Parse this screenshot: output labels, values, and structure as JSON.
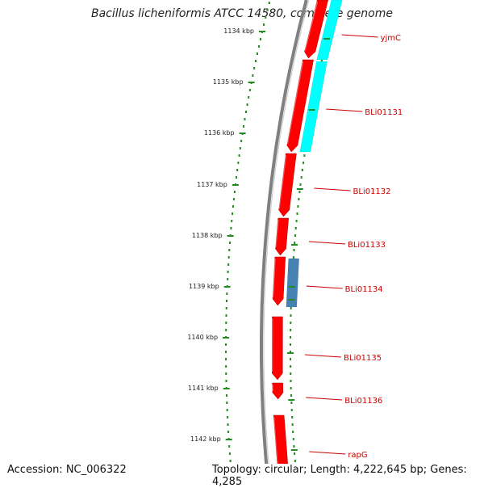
{
  "title": "Bacillus licheniformis ATCC 14580, complete genome",
  "footer": {
    "accession": "Accession: NC_006322",
    "topology": "Topology: circular; Length: 4,222,645 bp; Genes: 4,285"
  },
  "colors": {
    "forward_gene": "#ff0000",
    "reverse_gene": "#ff0000",
    "cyan_feature": "#00ffff",
    "blue_feature": "#4682b4",
    "label": "#cc0000",
    "ticks": "#228b22",
    "backbone": "#808080"
  },
  "ruler": {
    "unit": "kbp",
    "labels": [
      "1134 kbp",
      "1135 kbp",
      "1136 kbp",
      "1137 kbp",
      "1138 kbp",
      "1139 kbp",
      "1140 kbp",
      "1141 kbp",
      "1142 kbp"
    ]
  },
  "gene_labels": [
    "yjmC",
    "BLi01131",
    "BLi01132",
    "BLi01133",
    "BLi01134",
    "BLi01135",
    "BLi01136",
    "rapG"
  ]
}
